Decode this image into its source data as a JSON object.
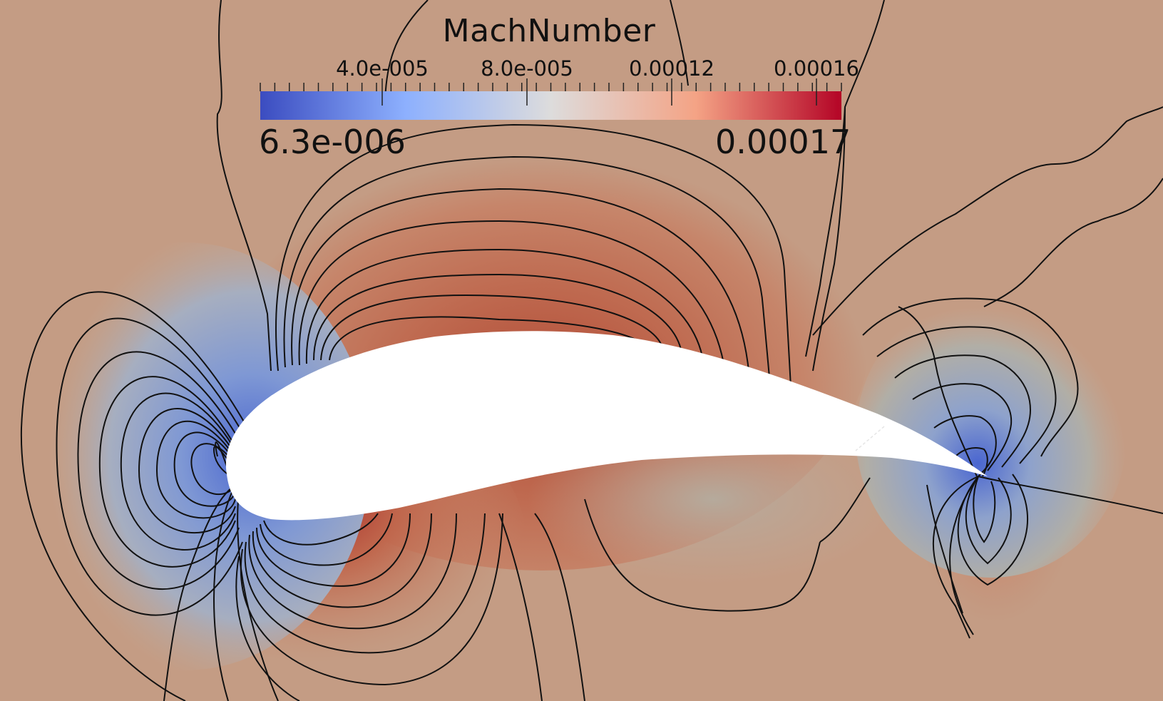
{
  "colorbar": {
    "title": "MachNumber",
    "ticks": [
      "4.0e-005",
      "8.0e-005",
      "0.00012",
      "0.00016"
    ],
    "min_label": "6.3e-006",
    "max_label": "0.00017",
    "colors": [
      "#3b4cc0",
      "#8db0fe",
      "#dddcdc",
      "#f4a385",
      "#b40426"
    ]
  },
  "field": {
    "description_colors": {
      "freestream": "#c4a08a",
      "high_speed": "#b14a35",
      "low_speed": "#5d79d1"
    },
    "contour_color": "#111111"
  }
}
